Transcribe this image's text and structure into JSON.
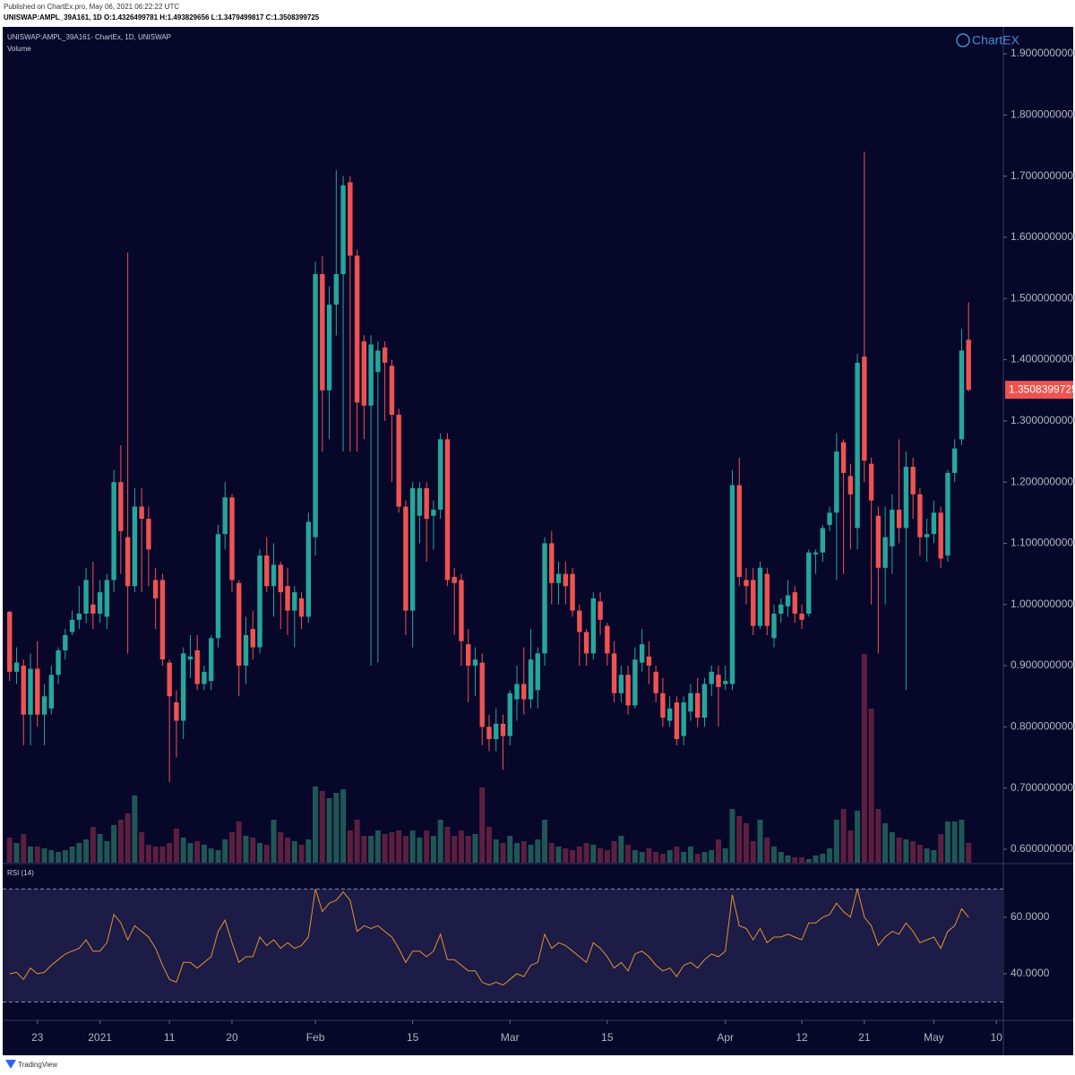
{
  "chart_data": {
    "type": "candlestick",
    "published": "Published on ChartEx.pro, May 06, 2021 06:22:22 UTC",
    "header_ohlc": "UNISWAP:AMPL_39A161, 1D  O:1.4326499781  H:1.493829656  L:1.3479499817  C:1.3508399725",
    "title": "UNISWAP:AMPL_39A161- ChartEx, 1D, UNISWAP",
    "volume_label": "Volume",
    "rsi_label": "RSI (14)",
    "logo": "ChartEX",
    "footer": "TradingView",
    "last_price_label": "1.3508399725",
    "up_color": "#26a69a",
    "down_color": "#ef5350",
    "volume_up_color": "#1f5656",
    "volume_down_color": "#5c1f40",
    "rsi_color": "#e39131",
    "x": [
      "2020-12-19",
      "2020-12-20",
      "2020-12-21",
      "2020-12-22",
      "2020-12-23",
      "2020-12-24",
      "2020-12-25",
      "2020-12-26",
      "2020-12-27",
      "2020-12-28",
      "2020-12-29",
      "2020-12-30",
      "2020-12-31",
      "2021-01-01",
      "2021-01-02",
      "2021-01-03",
      "2021-01-04",
      "2021-01-05",
      "2021-01-06",
      "2021-01-07",
      "2021-01-08",
      "2021-01-09",
      "2021-01-10",
      "2021-01-11",
      "2021-01-12",
      "2021-01-13",
      "2021-01-14",
      "2021-01-15",
      "2021-01-16",
      "2021-01-17",
      "2021-01-18",
      "2021-01-19",
      "2021-01-20",
      "2021-01-21",
      "2021-01-22",
      "2021-01-23",
      "2021-01-24",
      "2021-01-25",
      "2021-01-26",
      "2021-01-27",
      "2021-01-28",
      "2021-01-29",
      "2021-01-30",
      "2021-01-31",
      "2021-02-01",
      "2021-02-02",
      "2021-02-03",
      "2021-02-04",
      "2021-02-05",
      "2021-02-06",
      "2021-02-07",
      "2021-02-08",
      "2021-02-09",
      "2021-02-10",
      "2021-02-11",
      "2021-02-12",
      "2021-02-13",
      "2021-02-14",
      "2021-02-15",
      "2021-02-16",
      "2021-02-17",
      "2021-02-18",
      "2021-02-19",
      "2021-02-20",
      "2021-02-21",
      "2021-02-22",
      "2021-02-23",
      "2021-02-24",
      "2021-02-25",
      "2021-02-26",
      "2021-02-27",
      "2021-02-28",
      "2021-03-01",
      "2021-03-02",
      "2021-03-03",
      "2021-03-04",
      "2021-03-05",
      "2021-03-06",
      "2021-03-07",
      "2021-03-08",
      "2021-03-09",
      "2021-03-10",
      "2021-03-11",
      "2021-03-12",
      "2021-03-13",
      "2021-03-14",
      "2021-03-15",
      "2021-03-16",
      "2021-03-17",
      "2021-03-18",
      "2021-03-19",
      "2021-03-20",
      "2021-03-21",
      "2021-03-22",
      "2021-03-23",
      "2021-03-24",
      "2021-03-25",
      "2021-03-26",
      "2021-03-27",
      "2021-03-28",
      "2021-03-29",
      "2021-03-30",
      "2021-03-31",
      "2021-04-01",
      "2021-04-02",
      "2021-04-03",
      "2021-04-04",
      "2021-04-05",
      "2021-04-06",
      "2021-04-07",
      "2021-04-08",
      "2021-04-09",
      "2021-04-10",
      "2021-04-11",
      "2021-04-12",
      "2021-04-13",
      "2021-04-14",
      "2021-04-15",
      "2021-04-16",
      "2021-04-17",
      "2021-04-18",
      "2021-04-19",
      "2021-04-20",
      "2021-04-21",
      "2021-04-22",
      "2021-04-23",
      "2021-04-24",
      "2021-04-25",
      "2021-04-26",
      "2021-04-27",
      "2021-04-28",
      "2021-04-29",
      "2021-04-30",
      "2021-05-01",
      "2021-05-02",
      "2021-05-03",
      "2021-05-04",
      "2021-05-05",
      "2021-05-06"
    ],
    "open": [
      0.988,
      0.89,
      0.9,
      0.82,
      0.895,
      0.82,
      0.83,
      0.885,
      0.925,
      0.955,
      0.975,
      0.985,
      1.0,
      0.985,
      0.98,
      1.04,
      1.2,
      1.11,
      1.03,
      1.16,
      1.14,
      1.04,
      1.04,
      0.905,
      0.84,
      0.81,
      0.91,
      0.925,
      0.87,
      0.875,
      0.945,
      1.115,
      1.175,
      1.035,
      0.9,
      0.96,
      0.93,
      1.08,
      1.03,
      1.065,
      1.03,
      0.99,
      1.01,
      0.98,
      1.11,
      1.54,
      1.35,
      1.49,
      1.54,
      1.69,
      1.57,
      1.43,
      1.325,
      1.38,
      1.42,
      1.39,
      1.31,
      1.16,
      0.99,
      1.145,
      1.19,
      1.145,
      1.155,
      1.27,
      1.045,
      1.04,
      0.935,
      0.9,
      0.905,
      0.8,
      0.78,
      0.805,
      0.785,
      0.845,
      0.87,
      0.845,
      0.86,
      0.92,
      1.1,
      1.035,
      1.05,
      1.05,
      0.99,
      0.955,
      0.92,
      1.005,
      0.965,
      0.92,
      0.855,
      0.885,
      0.835,
      0.905,
      0.915,
      0.89,
      0.855,
      0.81,
      0.84,
      0.785,
      0.825,
      0.855,
      0.815,
      0.87,
      0.885,
      0.87,
      0.87,
      1.195,
      1.04,
      1.04,
      0.965,
      1.05,
      0.945,
      0.985,
      0.997,
      1.02,
      0.985,
      0.985,
      1.082,
      1.085,
      1.13,
      1.15,
      1.265,
      1.21,
      1.125,
      1.405,
      1.23,
      1.145,
      1.06,
      1.095,
      1.155,
      1.125,
      1.225,
      1.18,
      1.11,
      1.115,
      1.15,
      1.08,
      1.215,
      1.27,
      1.4326499781
    ],
    "high": [
      0.99,
      0.93,
      0.91,
      0.92,
      0.94,
      0.87,
      0.9,
      0.93,
      0.96,
      0.99,
      1.03,
      1.06,
      1.07,
      1.04,
      1.05,
      1.22,
      1.26,
      1.575,
      1.19,
      1.19,
      1.16,
      1.06,
      1.05,
      0.91,
      0.86,
      0.93,
      0.95,
      0.95,
      0.9,
      0.95,
      1.13,
      1.2,
      1.18,
      1.04,
      0.98,
      0.99,
      1.09,
      1.11,
      1.1,
      1.07,
      1.06,
      1.03,
      1.02,
      1.15,
      1.56,
      1.57,
      1.52,
      1.71,
      1.7,
      1.7,
      1.58,
      1.44,
      1.44,
      1.43,
      1.43,
      1.4,
      1.32,
      1.17,
      1.2,
      1.2,
      1.2,
      1.17,
      1.28,
      1.28,
      1.06,
      1.05,
      0.96,
      0.93,
      0.92,
      0.82,
      0.83,
      0.82,
      0.86,
      0.9,
      0.93,
      0.96,
      0.93,
      1.11,
      1.12,
      1.07,
      1.07,
      1.06,
      1.0,
      0.96,
      1.02,
      1.02,
      0.97,
      0.94,
      0.9,
      0.9,
      0.93,
      0.96,
      0.94,
      0.9,
      0.88,
      0.85,
      0.85,
      0.85,
      0.87,
      0.88,
      0.88,
      0.9,
      0.9,
      0.9,
      1.22,
      1.24,
      1.06,
      1.06,
      1.07,
      1.06,
      1.0,
      1.01,
      1.04,
      1.03,
      1.0,
      1.09,
      1.09,
      1.13,
      1.16,
      1.28,
      1.27,
      1.23,
      1.41,
      1.74,
      1.24,
      1.16,
      1.16,
      1.18,
      1.27,
      1.25,
      1.24,
      1.19,
      1.14,
      1.17,
      1.16,
      1.22,
      1.27,
      1.45,
      1.493829656
    ],
    "low": [
      0.875,
      0.87,
      0.77,
      0.77,
      0.8,
      0.77,
      0.82,
      0.87,
      0.91,
      0.95,
      0.96,
      0.97,
      0.96,
      0.97,
      0.96,
      1.02,
      1.05,
      0.92,
      1.02,
      1.02,
      1.03,
      0.96,
      0.9,
      0.71,
      0.75,
      0.78,
      0.88,
      0.86,
      0.86,
      0.86,
      0.93,
      1.09,
      1.02,
      0.85,
      0.87,
      0.91,
      0.92,
      1.02,
      0.98,
      0.96,
      0.95,
      0.93,
      0.96,
      0.97,
      1.08,
      1.25,
      1.27,
      1.44,
      1.25,
      1.25,
      1.25,
      1.27,
      0.9,
      0.905,
      1.3,
      1.2,
      1.15,
      0.95,
      0.93,
      1.1,
      1.07,
      1.09,
      1.14,
      1.03,
      0.95,
      0.9,
      0.84,
      0.85,
      0.77,
      0.76,
      0.76,
      0.73,
      0.77,
      0.81,
      0.82,
      0.83,
      0.83,
      0.9,
      1.0,
      1.0,
      1.0,
      0.98,
      0.9,
      0.9,
      0.91,
      0.95,
      0.9,
      0.84,
      0.84,
      0.82,
      0.83,
      0.89,
      0.87,
      0.84,
      0.8,
      0.8,
      0.77,
      0.77,
      0.81,
      0.8,
      0.8,
      0.85,
      0.8,
      0.86,
      0.86,
      1.03,
      1.0,
      0.95,
      0.96,
      0.95,
      0.93,
      0.97,
      0.98,
      0.97,
      0.96,
      0.98,
      1.05,
      1.07,
      1.12,
      1.04,
      1.05,
      1.09,
      1.09,
      1.2,
      1.0,
      0.92,
      1.0,
      1.05,
      1.1,
      0.86,
      1.14,
      1.08,
      1.07,
      1.1,
      1.06,
      1.07,
      1.2,
      1.26,
      1.3479499817
    ],
    "close": [
      0.89,
      0.905,
      0.82,
      0.895,
      0.82,
      0.85,
      0.885,
      0.925,
      0.95,
      0.975,
      0.985,
      1.04,
      0.985,
      1.02,
      1.04,
      1.2,
      1.12,
      1.03,
      1.16,
      1.14,
      1.09,
      1.01,
      0.91,
      0.85,
      0.81,
      0.92,
      0.915,
      0.87,
      0.89,
      0.945,
      1.115,
      1.175,
      1.04,
      0.9,
      0.95,
      0.93,
      1.08,
      1.03,
      1.065,
      1.02,
      0.99,
      1.02,
      0.98,
      1.135,
      1.54,
      1.35,
      1.49,
      1.54,
      1.685,
      1.57,
      1.33,
      1.325,
      1.425,
      1.415,
      1.395,
      1.31,
      1.16,
      0.99,
      1.19,
      1.19,
      1.14,
      1.155,
      1.27,
      1.04,
      1.035,
      0.94,
      0.9,
      0.91,
      0.8,
      0.78,
      0.805,
      0.785,
      0.855,
      0.87,
      0.845,
      0.91,
      0.92,
      1.1,
      1.035,
      1.05,
      1.03,
      0.99,
      0.955,
      0.92,
      1.01,
      0.975,
      0.92,
      0.855,
      0.885,
      0.835,
      0.91,
      0.935,
      0.9,
      0.855,
      0.815,
      0.83,
      0.78,
      0.84,
      0.855,
      0.815,
      0.87,
      0.89,
      0.865,
      0.875,
      1.195,
      1.045,
      1.03,
      0.965,
      1.06,
      0.965,
      0.985,
      1.0,
      1.015,
      0.985,
      0.975,
      1.085,
      1.085,
      1.125,
      1.15,
      1.25,
      1.215,
      1.18,
      1.395,
      1.235,
      1.17,
      1.06,
      1.11,
      1.155,
      1.125,
      1.225,
      1.18,
      1.11,
      1.115,
      1.15,
      1.075,
      1.215,
      1.255,
      1.415,
      1.3508399725
    ],
    "volume": [
      28,
      22,
      32,
      18,
      18,
      16,
      14,
      12,
      14,
      18,
      22,
      26,
      40,
      32,
      24,
      42,
      48,
      55,
      75,
      34,
      20,
      18,
      18,
      22,
      38,
      28,
      22,
      24,
      20,
      16,
      14,
      26,
      34,
      46,
      30,
      28,
      22,
      20,
      48,
      34,
      28,
      24,
      20,
      26,
      85,
      80,
      72,
      78,
      82,
      36,
      48,
      30,
      30,
      36,
      32,
      34,
      36,
      30,
      36,
      28,
      36,
      30,
      48,
      40,
      30,
      36,
      30,
      32,
      84,
      40,
      26,
      22,
      30,
      22,
      24,
      20,
      26,
      48,
      22,
      18,
      16,
      14,
      18,
      22,
      20,
      16,
      14,
      24,
      30,
      20,
      14,
      12,
      16,
      12,
      10,
      14,
      18,
      12,
      18,
      10,
      12,
      14,
      26,
      16,
      60,
      52,
      44,
      24,
      48,
      28,
      18,
      12,
      8,
      6,
      6,
      4,
      8,
      10,
      16,
      48,
      60,
      36,
      58,
      233,
      172,
      60,
      44,
      34,
      28,
      26,
      24,
      20,
      16,
      14,
      32,
      46,
      46,
      48,
      22
    ],
    "rsi": [
      40,
      40.5,
      38,
      42,
      40,
      40.5,
      43,
      45,
      47,
      48,
      49,
      52,
      48,
      48,
      51,
      61,
      58,
      52,
      57,
      55,
      53,
      49,
      43,
      38,
      37,
      44,
      44,
      42,
      44,
      46,
      55,
      59,
      51,
      44,
      46,
      46,
      53,
      50,
      52,
      49,
      51,
      49,
      50,
      53,
      70,
      62,
      65,
      66,
      69,
      66,
      55,
      57,
      56,
      57,
      55,
      53,
      49,
      44,
      48,
      48,
      46,
      48,
      54,
      45,
      45,
      43,
      41,
      41,
      37,
      36,
      37,
      36,
      38,
      40,
      39,
      43,
      44,
      54,
      49,
      51,
      50,
      48,
      46,
      44,
      51,
      49,
      46,
      42,
      44,
      41,
      47,
      48,
      46,
      43,
      41,
      42,
      39,
      43,
      44,
      42,
      45,
      47,
      46,
      48,
      68,
      57,
      56,
      52,
      56,
      51,
      53,
      53,
      54,
      53,
      52,
      58,
      58,
      60,
      61,
      65,
      62,
      60,
      70,
      60,
      57,
      50,
      53,
      55,
      54,
      58,
      55,
      51,
      52,
      53,
      49,
      55,
      57,
      63,
      60
    ],
    "xlim": [
      "2020-12-18",
      "2021-05-11"
    ],
    "xticks": [
      {
        "value": "2020-12-23",
        "label": "23"
      },
      {
        "value": "2021-01-01",
        "label": "2021"
      },
      {
        "value": "2021-01-11",
        "label": "11"
      },
      {
        "value": "2021-01-20",
        "label": "20"
      },
      {
        "value": "2021-02-01",
        "label": "Feb"
      },
      {
        "value": "2021-02-15",
        "label": "15"
      },
      {
        "value": "2021-03-01",
        "label": "Mar"
      },
      {
        "value": "2021-03-15",
        "label": "15"
      },
      {
        "value": "2021-04-01",
        "label": "Apr"
      },
      {
        "value": "2021-04-12",
        "label": "12"
      },
      {
        "value": "2021-04-21",
        "label": "21"
      },
      {
        "value": "2021-05-01",
        "label": "May"
      },
      {
        "value": "2021-05-10",
        "label": "10"
      }
    ],
    "ylim": [
      0.578,
      1.944
    ],
    "yticks": [
      {
        "value": 0.6,
        "label": "0.6000000000"
      },
      {
        "value": 0.7,
        "label": "0.7000000000"
      },
      {
        "value": 0.8,
        "label": "0.8000000000"
      },
      {
        "value": 0.9,
        "label": "0.9000000000"
      },
      {
        "value": 1.0,
        "label": "1.0000000000"
      },
      {
        "value": 1.1,
        "label": "1.1000000000"
      },
      {
        "value": 1.2,
        "label": "1.2000000000"
      },
      {
        "value": 1.3,
        "label": "1.3000000000"
      },
      {
        "value": 1.4,
        "label": "1.4000000000"
      },
      {
        "value": 1.5,
        "label": "1.5000000000"
      },
      {
        "value": 1.6,
        "label": "1.6000000000"
      },
      {
        "value": 1.7,
        "label": "1.7000000000"
      },
      {
        "value": 1.8,
        "label": "1.8000000000"
      },
      {
        "value": 1.9,
        "label": "1.9000000000"
      }
    ],
    "rsi_ylim": [
      23.8,
      78.7
    ],
    "rsi_yticks": [
      {
        "value": 40,
        "label": "40.0000"
      },
      {
        "value": 60,
        "label": "60.0000"
      }
    ],
    "rsi_band": [
      30,
      70
    ]
  }
}
